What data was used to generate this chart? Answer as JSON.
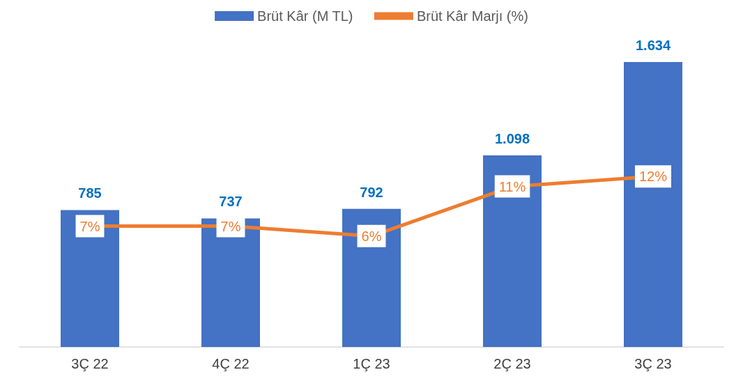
{
  "chart_data": {
    "type": "bar",
    "categories": [
      "3Ç 22",
      "4Ç 22",
      "1Ç 23",
      "2Ç 23",
      "3Ç 23"
    ],
    "series": [
      {
        "name": "Brüt Kâr (M TL)",
        "color": "#4472c4",
        "values": [
          785,
          737,
          792,
          1098,
          1634
        ],
        "value_labels": [
          "785",
          "737",
          "792",
          "1.098",
          "1.634"
        ]
      },
      {
        "name": "Brüt Kâr Marjı (%)",
        "type": "line",
        "axis": "y2",
        "color": "#ed7d31",
        "values": [
          7,
          7,
          6,
          11,
          12
        ],
        "value_labels": [
          "7%",
          "7%",
          "6%",
          "11%",
          "12%"
        ]
      }
    ],
    "tick_labels": "x",
    "grid": false,
    "legend": "top"
  }
}
